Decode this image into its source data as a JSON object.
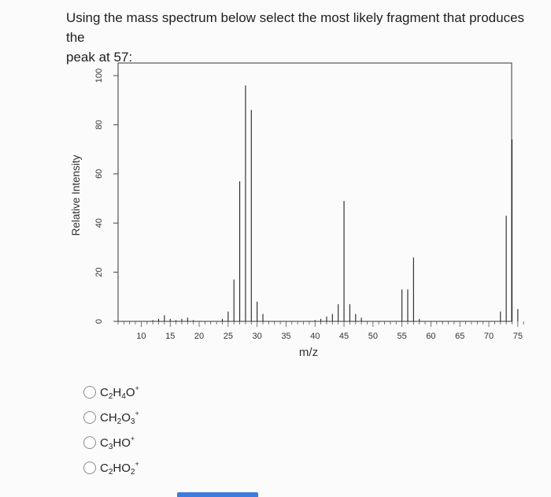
{
  "question": {
    "line1": "Using the mass spectrum below select the most likely fragment that produces the",
    "line2": "peak at 57:"
  },
  "chart_data": {
    "type": "bar",
    "title": "",
    "xlabel": "m/z",
    "ylabel": "Relative Intensity",
    "xlim": [
      6,
      76
    ],
    "ylim": [
      0,
      100
    ],
    "x_ticks": [
      10,
      15,
      20,
      25,
      30,
      35,
      40,
      45,
      50,
      55,
      60,
      65,
      70,
      75
    ],
    "y_ticks": [
      0,
      20,
      40,
      60,
      80,
      100
    ],
    "grid": false,
    "peaks": [
      {
        "mz": 12,
        "intensity": 0.5
      },
      {
        "mz": 13,
        "intensity": 1
      },
      {
        "mz": 14,
        "intensity": 2.5
      },
      {
        "mz": 15,
        "intensity": 1
      },
      {
        "mz": 16,
        "intensity": 0.5
      },
      {
        "mz": 17,
        "intensity": 1
      },
      {
        "mz": 18,
        "intensity": 1.5
      },
      {
        "mz": 19,
        "intensity": 0.5
      },
      {
        "mz": 24,
        "intensity": 1
      },
      {
        "mz": 25,
        "intensity": 4
      },
      {
        "mz": 26,
        "intensity": 17
      },
      {
        "mz": 27,
        "intensity": 57
      },
      {
        "mz": 28,
        "intensity": 96
      },
      {
        "mz": 29,
        "intensity": 86
      },
      {
        "mz": 30,
        "intensity": 8
      },
      {
        "mz": 31,
        "intensity": 3
      },
      {
        "mz": 40,
        "intensity": 0.5
      },
      {
        "mz": 41,
        "intensity": 1
      },
      {
        "mz": 42,
        "intensity": 2
      },
      {
        "mz": 43,
        "intensity": 3
      },
      {
        "mz": 44,
        "intensity": 7
      },
      {
        "mz": 45,
        "intensity": 49
      },
      {
        "mz": 46,
        "intensity": 7
      },
      {
        "mz": 47,
        "intensity": 3
      },
      {
        "mz": 48,
        "intensity": 1.5
      },
      {
        "mz": 55,
        "intensity": 13
      },
      {
        "mz": 56,
        "intensity": 13
      },
      {
        "mz": 57,
        "intensity": 26
      },
      {
        "mz": 58,
        "intensity": 1
      },
      {
        "mz": 72,
        "intensity": 4
      },
      {
        "mz": 73,
        "intensity": 43
      },
      {
        "mz": 74,
        "intensity": 74
      },
      {
        "mz": 75,
        "intensity": 5
      }
    ]
  },
  "options": [
    {
      "parts": [
        [
          "t",
          "C"
        ],
        [
          "sub",
          "2"
        ],
        [
          "t",
          "H"
        ],
        [
          "sub",
          "4"
        ],
        [
          "t",
          "O"
        ],
        [
          "sup",
          "+"
        ]
      ]
    },
    {
      "parts": [
        [
          "t",
          "CH"
        ],
        [
          "sub",
          "2"
        ],
        [
          "t",
          "O"
        ],
        [
          "sub",
          "3"
        ],
        [
          "sup",
          "+"
        ]
      ]
    },
    {
      "parts": [
        [
          "t",
          "C"
        ],
        [
          "sub",
          "3"
        ],
        [
          "t",
          "HO"
        ],
        [
          "sup",
          "+"
        ]
      ]
    },
    {
      "parts": [
        [
          "t",
          "C"
        ],
        [
          "sub",
          "2"
        ],
        [
          "t",
          "HO"
        ],
        [
          "sub",
          "2"
        ],
        [
          "sup",
          "+"
        ]
      ]
    }
  ]
}
